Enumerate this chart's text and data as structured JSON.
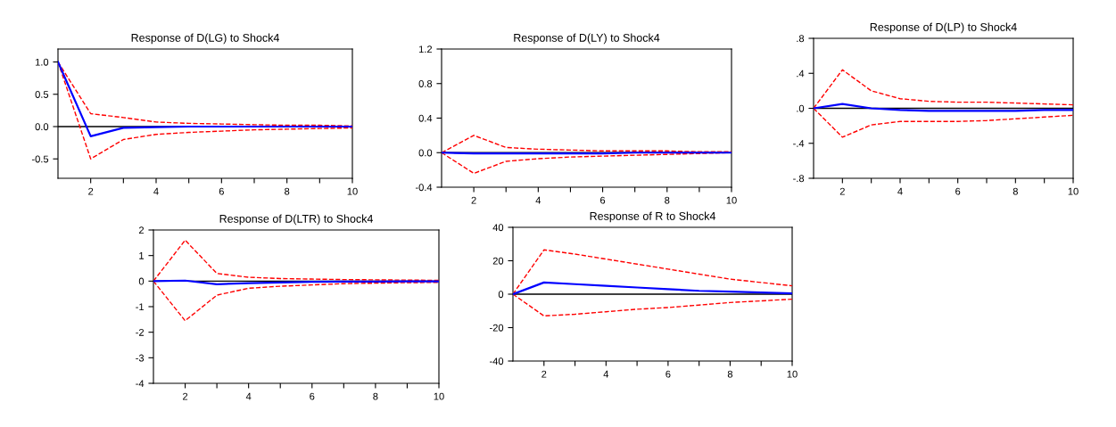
{
  "chart_data": [
    {
      "type": "line",
      "title": "Response of D(LG) to Shock4",
      "x": [
        1,
        2,
        3,
        4,
        5,
        6,
        7,
        8,
        9,
        10
      ],
      "xlim": [
        1,
        10
      ],
      "xticks": [
        2,
        {
          "value": 3,
          "label": null
        },
        4,
        {
          "value": 5,
          "label": null
        },
        6,
        {
          "value": 7,
          "label": null
        },
        8,
        {
          "value": 9,
          "label": null
        },
        10
      ],
      "ylim": [
        -0.8,
        1.2
      ],
      "yticks": [
        {
          "value": -0.5,
          "label": "-0.5"
        },
        {
          "value": 0,
          "label": "0.0"
        },
        {
          "value": 0.5,
          "label": "0.5"
        },
        {
          "value": 1,
          "label": "1.0"
        }
      ],
      "ref_lines": [
        {
          "axis": "y",
          "value": 0,
          "color": "#000000"
        }
      ],
      "grid": false,
      "legend": false,
      "series": [
        {
          "color": "#ff0000",
          "line_style": "dashed",
          "values": [
            1,
            0.2,
            0.14,
            0.07,
            0.05,
            0.04,
            0.03,
            0.02,
            0.02,
            0.01
          ]
        },
        {
          "color": "#0000ff",
          "line_style": "solid",
          "values": [
            1,
            -0.15,
            -0.02,
            -0.01,
            0,
            0,
            0,
            0,
            0,
            0
          ]
        },
        {
          "color": "#ff0000",
          "line_style": "dashed",
          "values": [
            1,
            -0.5,
            -0.2,
            -0.12,
            -0.09,
            -0.07,
            -0.05,
            -0.04,
            -0.03,
            -0.02
          ]
        }
      ]
    },
    {
      "type": "line",
      "title": "Response of D(LY) to Shock4",
      "x": [
        1,
        2,
        3,
        4,
        5,
        6,
        7,
        8,
        9,
        10
      ],
      "xlim": [
        1,
        10
      ],
      "xticks": [
        2,
        {
          "value": 3,
          "label": null
        },
        4,
        {
          "value": 5,
          "label": null
        },
        6,
        {
          "value": 7,
          "label": null
        },
        8,
        {
          "value": 9,
          "label": null
        },
        10
      ],
      "ylim": [
        -0.4,
        1.2
      ],
      "yticks": [
        {
          "value": -0.4,
          "label": "-0.4"
        },
        {
          "value": 0,
          "label": "0.0"
        },
        {
          "value": 0.4,
          "label": "0.4"
        },
        {
          "value": 0.8,
          "label": "0.8"
        },
        {
          "value": 1.2,
          "label": "1.2"
        }
      ],
      "ref_lines": [
        {
          "axis": "y",
          "value": 0,
          "color": "#000000"
        }
      ],
      "grid": false,
      "legend": false,
      "series": [
        {
          "color": "#ff0000",
          "line_style": "dashed",
          "values": [
            0,
            0.2,
            0.06,
            0.04,
            0.03,
            0.02,
            0.02,
            0.02,
            0.01,
            0.01
          ]
        },
        {
          "color": "#0000ff",
          "line_style": "solid",
          "values": [
            0,
            -0.01,
            -0.01,
            -0.01,
            -0.01,
            -0.01,
            0,
            0,
            0,
            0
          ]
        },
        {
          "color": "#ff0000",
          "line_style": "dashed",
          "values": [
            0,
            -0.24,
            -0.1,
            -0.07,
            -0.05,
            -0.04,
            -0.03,
            -0.02,
            -0.01,
            0
          ]
        }
      ]
    },
    {
      "type": "line",
      "title": "Response of D(LP) to Shock4",
      "x": [
        1,
        2,
        3,
        4,
        5,
        6,
        7,
        8,
        9,
        10
      ],
      "xlim": [
        1,
        10
      ],
      "xticks": [
        2,
        {
          "value": 3,
          "label": null
        },
        4,
        {
          "value": 5,
          "label": null
        },
        6,
        {
          "value": 7,
          "label": null
        },
        8,
        {
          "value": 9,
          "label": null
        },
        10
      ],
      "ylim": [
        -0.8,
        0.8
      ],
      "yticks": [
        {
          "value": -0.8,
          "label": "-.8"
        },
        {
          "value": -0.4,
          "label": "-.4"
        },
        {
          "value": 0,
          "label": ".0"
        },
        {
          "value": 0.4,
          "label": ".4"
        },
        {
          "value": 0.8,
          "label": ".8"
        }
      ],
      "ref_lines": [
        {
          "axis": "y",
          "value": 0,
          "color": "#000000"
        }
      ],
      "grid": false,
      "legend": false,
      "series": [
        {
          "color": "#ff0000",
          "line_style": "dashed",
          "values": [
            0,
            0.44,
            0.2,
            0.11,
            0.08,
            0.07,
            0.07,
            0.06,
            0.05,
            0.04
          ]
        },
        {
          "color": "#0000ff",
          "line_style": "solid",
          "values": [
            0,
            0.05,
            0,
            -0.02,
            -0.03,
            -0.03,
            -0.03,
            -0.03,
            -0.02,
            -0.02
          ]
        },
        {
          "color": "#ff0000",
          "line_style": "dashed",
          "values": [
            0,
            -0.33,
            -0.19,
            -0.15,
            -0.15,
            -0.15,
            -0.14,
            -0.12,
            -0.1,
            -0.08
          ]
        }
      ]
    },
    {
      "type": "line",
      "title": "Response of D(LTR) to Shock4",
      "x": [
        1,
        2,
        3,
        4,
        5,
        6,
        7,
        8,
        9,
        10
      ],
      "xlim": [
        1,
        10
      ],
      "xticks": [
        2,
        {
          "value": 3,
          "label": null
        },
        4,
        {
          "value": 5,
          "label": null
        },
        6,
        {
          "value": 7,
          "label": null
        },
        8,
        {
          "value": 9,
          "label": null
        },
        10
      ],
      "ylim": [
        -4,
        2
      ],
      "yticks": [
        -4,
        -3,
        -2,
        -1,
        0,
        1,
        2
      ],
      "ref_lines": [
        {
          "axis": "y",
          "value": 0,
          "color": "#000000"
        }
      ],
      "grid": false,
      "legend": false,
      "series": [
        {
          "color": "#ff0000",
          "line_style": "dashed",
          "values": [
            0,
            1.6,
            0.3,
            0.15,
            0.1,
            0.08,
            0.06,
            0.05,
            0.04,
            0.03
          ]
        },
        {
          "color": "#0000ff",
          "line_style": "solid",
          "values": [
            0,
            0.02,
            -0.12,
            -0.08,
            -0.05,
            -0.03,
            -0.02,
            -0.02,
            -0.01,
            -0.01
          ]
        },
        {
          "color": "#ff0000",
          "line_style": "dashed",
          "values": [
            0,
            -1.55,
            -0.55,
            -0.28,
            -0.2,
            -0.15,
            -0.1,
            -0.08,
            -0.06,
            -0.05
          ]
        }
      ]
    },
    {
      "type": "line",
      "title": "Response of R to Shock4",
      "x": [
        1,
        2,
        3,
        4,
        5,
        6,
        7,
        8,
        9,
        10
      ],
      "xlim": [
        1,
        10
      ],
      "xticks": [
        2,
        {
          "value": 3,
          "label": null
        },
        4,
        {
          "value": 5,
          "label": null
        },
        6,
        {
          "value": 7,
          "label": null
        },
        8,
        {
          "value": 9,
          "label": null
        },
        10
      ],
      "ylim": [
        -40,
        40
      ],
      "yticks": [
        -40,
        -20,
        0,
        20,
        40
      ],
      "ref_lines": [
        {
          "axis": "y",
          "value": 0,
          "color": "#000000"
        }
      ],
      "grid": false,
      "legend": false,
      "series": [
        {
          "color": "#ff0000",
          "line_style": "dashed",
          "values": [
            0,
            26.5,
            24,
            21,
            18,
            15,
            12,
            9,
            7,
            5
          ]
        },
        {
          "color": "#0000ff",
          "line_style": "solid",
          "values": [
            0,
            7,
            6,
            5,
            4,
            3,
            2,
            1.5,
            1,
            0.5
          ]
        },
        {
          "color": "#ff0000",
          "line_style": "dashed",
          "values": [
            0,
            -13,
            -12,
            -10.5,
            -9,
            -8,
            -6.5,
            -5,
            -4,
            -3
          ]
        }
      ]
    }
  ]
}
